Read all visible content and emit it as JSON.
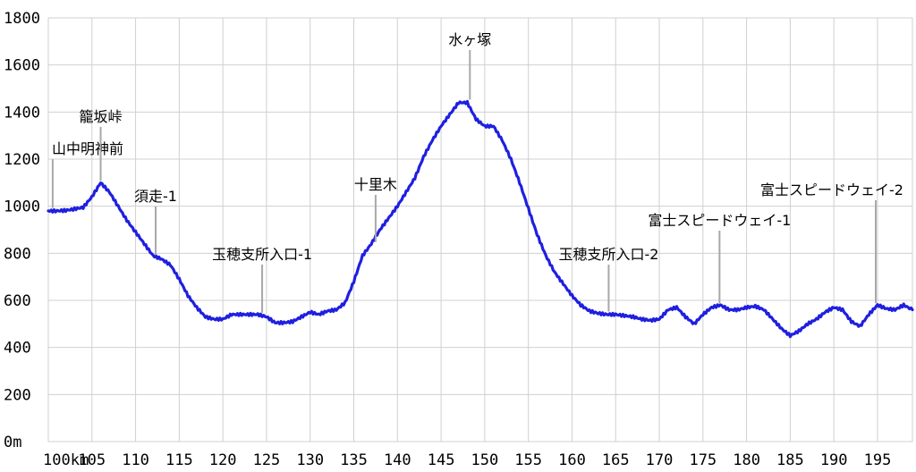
{
  "chart_data": {
    "type": "line",
    "xlabel": "",
    "ylabel": "",
    "xlim": [
      100,
      199
    ],
    "ylim": [
      0,
      1800
    ],
    "grid": true,
    "x_ticks": [
      100,
      105,
      110,
      115,
      120,
      125,
      130,
      135,
      140,
      145,
      150,
      155,
      160,
      165,
      170,
      175,
      180,
      185,
      190,
      195
    ],
    "x_tick_labels": [
      "100km",
      "105",
      "110",
      "115",
      "120",
      "125",
      "130",
      "135",
      "140",
      "145",
      "150",
      "155",
      "160",
      "165",
      "170",
      "175",
      "180",
      "185",
      "190",
      "195"
    ],
    "y_ticks": [
      0,
      200,
      400,
      600,
      800,
      1000,
      1200,
      1400,
      1600,
      1800
    ],
    "y_tick_labels": [
      "0m",
      "200",
      "400",
      "600",
      "800",
      "1000",
      "1200",
      "1400",
      "1600",
      "1800"
    ],
    "series": [
      {
        "color": "#1f1fe0",
        "x": [
          100,
          101,
          102,
          103,
          104,
          105,
          106,
          107,
          108,
          109,
          110,
          111,
          112,
          113,
          114,
          115,
          116,
          117,
          118,
          119,
          120,
          121,
          122,
          123,
          124,
          125,
          126,
          127,
          128,
          129,
          130,
          131,
          132,
          133,
          134,
          135,
          136,
          137,
          138,
          139,
          140,
          141,
          142,
          143,
          144,
          145,
          146,
          147,
          148,
          149,
          150,
          151,
          152,
          153,
          154,
          155,
          156,
          157,
          158,
          159,
          160,
          161,
          162,
          163,
          164,
          165,
          166,
          167,
          168,
          169,
          170,
          171,
          172,
          173,
          174,
          175,
          176,
          177,
          178,
          179,
          180,
          181,
          182,
          183,
          184,
          185,
          186,
          187,
          188,
          189,
          190,
          191,
          192,
          193,
          194,
          195,
          196,
          197,
          198,
          199
        ],
        "y": [
          980,
          980,
          982,
          988,
          995,
          1040,
          1100,
          1060,
          1000,
          940,
          890,
          840,
          790,
          775,
          750,
          690,
          620,
          570,
          530,
          520,
          520,
          540,
          540,
          540,
          540,
          530,
          505,
          505,
          510,
          530,
          550,
          540,
          555,
          560,
          590,
          680,
          790,
          840,
          900,
          950,
          1000,
          1060,
          1120,
          1210,
          1280,
          1340,
          1390,
          1440,
          1440,
          1370,
          1340,
          1340,
          1280,
          1200,
          1100,
          990,
          880,
          790,
          720,
          670,
          620,
          580,
          555,
          545,
          540,
          540,
          535,
          530,
          520,
          515,
          520,
          560,
          570,
          530,
          500,
          540,
          570,
          580,
          560,
          560,
          570,
          575,
          560,
          520,
          480,
          450,
          470,
          500,
          520,
          550,
          570,
          560,
          510,
          490,
          540,
          580,
          565,
          560,
          580,
          560
        ]
      }
    ],
    "annotations": [
      {
        "text": "山中明神前",
        "x": 100.5,
        "y": 985
      },
      {
        "text": "籠坂峠",
        "x": 106,
        "y": 1100
      },
      {
        "text": "須走-1",
        "x": 112.3,
        "y": 785
      },
      {
        "text": "玉穂支所入口-1",
        "x": 124.5,
        "y": 540
      },
      {
        "text": "十里木",
        "x": 137.5,
        "y": 840
      },
      {
        "text": "水ヶ塚",
        "x": 148.3,
        "y": 1445
      },
      {
        "text": "玉穂支所入口-2",
        "x": 164.2,
        "y": 545
      },
      {
        "text": "富士スピードウェイ-1",
        "x": 176.9,
        "y": 580
      },
      {
        "text": "富士スピードウェイ-2",
        "x": 194.8,
        "y": 580
      }
    ]
  }
}
